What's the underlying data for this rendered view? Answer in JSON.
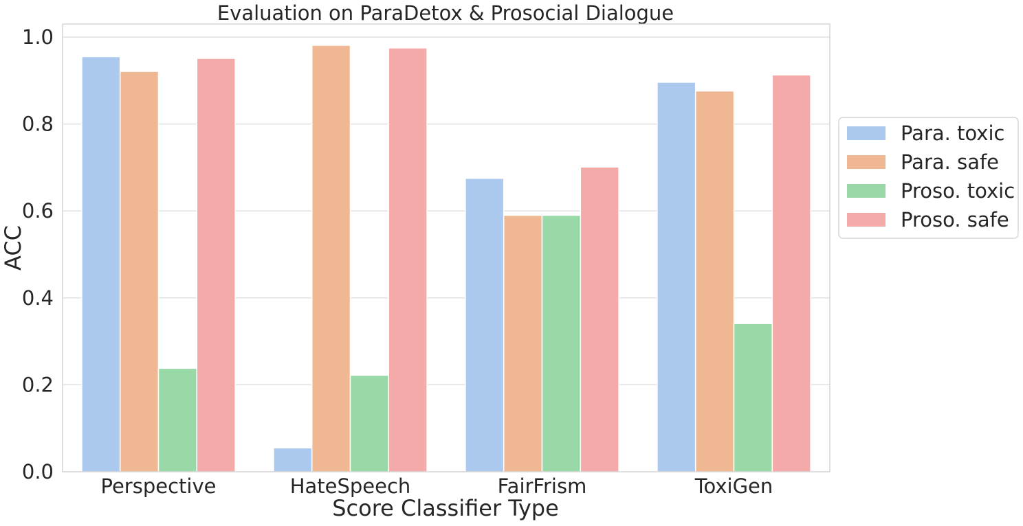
{
  "chart_data": {
    "type": "bar",
    "title": "Evaluation on ParaDetox & Prosocial Dialogue",
    "xlabel": "Score Classifier Type",
    "ylabel": "ACC",
    "categories": [
      "Perspective",
      "HateSpeech",
      "FairFrism",
      "ToxiGen"
    ],
    "series": [
      {
        "name": "Para. toxic",
        "color": "#abc9ee",
        "values": [
          0.955,
          0.055,
          0.675,
          0.896
        ]
      },
      {
        "name": "Para. safe",
        "color": "#f0b892",
        "values": [
          0.921,
          0.981,
          0.59,
          0.876
        ]
      },
      {
        "name": "Proso. toxic",
        "color": "#98d9a7",
        "values": [
          0.238,
          0.222,
          0.59,
          0.341
        ]
      },
      {
        "name": "Proso. safe",
        "color": "#f3aaa8",
        "values": [
          0.951,
          0.975,
          0.701,
          0.913
        ]
      }
    ],
    "ylim": [
      0,
      1.03
    ],
    "yticks": [
      "0.0",
      "0.2",
      "0.4",
      "0.6",
      "0.8",
      "1.0"
    ],
    "grid": "horizontal",
    "legend": "right"
  }
}
